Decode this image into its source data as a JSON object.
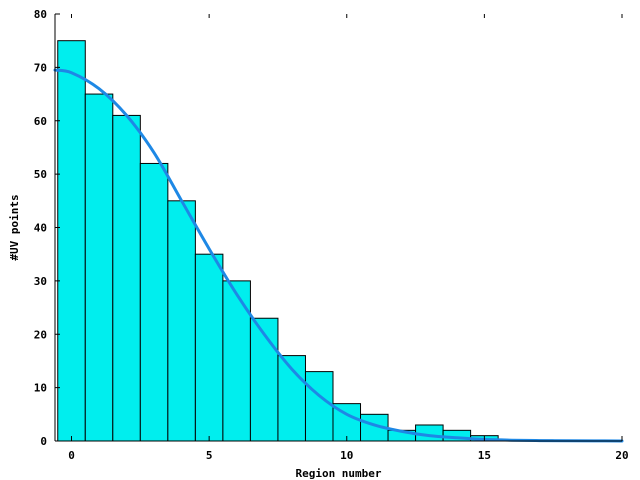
{
  "chart_data": {
    "type": "bar",
    "title": "",
    "xlabel": "Region number",
    "ylabel": "#UV points",
    "xlim": [
      -0.6,
      20
    ],
    "ylim": [
      0,
      80
    ],
    "x_ticks": [
      0,
      5,
      10,
      15,
      20
    ],
    "y_ticks": [
      0,
      10,
      20,
      30,
      40,
      50,
      60,
      70,
      80
    ],
    "bar_width": 1,
    "bar_color": "#00eeee",
    "line_color": "#1e88e5",
    "grid": false,
    "series": [
      {
        "type": "bar",
        "x": [
          0,
          1,
          2,
          3,
          4,
          5,
          6,
          7,
          8,
          9,
          10,
          11,
          12,
          13,
          14,
          15,
          16,
          17,
          18,
          19
        ],
        "values": [
          75,
          65,
          61,
          52,
          45,
          35,
          30,
          23,
          16,
          13,
          7,
          5,
          2,
          3,
          2,
          1,
          0.2,
          0.2,
          0.1,
          0.1
        ]
      },
      {
        "type": "line",
        "x": [
          -0.6,
          0,
          1,
          2,
          3,
          4,
          5,
          6,
          7,
          8,
          9,
          10,
          11,
          12,
          13,
          14,
          15,
          16,
          17,
          18,
          19,
          20
        ],
        "values": [
          69.5,
          69,
          66,
          61,
          54,
          45,
          36,
          27.5,
          20,
          13.5,
          8.5,
          5,
          3,
          1.8,
          1,
          0.6,
          0.3,
          0.15,
          0.08,
          0.04,
          0.02,
          0.01
        ]
      }
    ]
  }
}
